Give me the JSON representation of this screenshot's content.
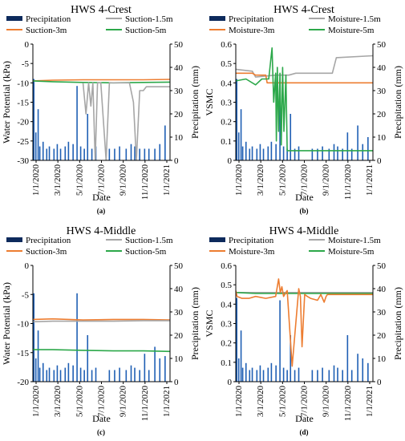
{
  "figure": {
    "panels": [
      "a",
      "b",
      "c",
      "d"
    ]
  },
  "chart_data": [
    {
      "id": "a",
      "type": "line",
      "title": "HWS 4-Crest",
      "caption": "(a)",
      "xlabel": "Date",
      "ylabel": "Water Potential (kPa)",
      "y2label": "Precipitation (mm)",
      "x_ticks": [
        "1/1/2020",
        "3/1/2020",
        "5/1/2020",
        "7/1/2020",
        "9/1/2020",
        "11/1/2020",
        "1/1/2021"
      ],
      "x_range": [
        "2020-01-01",
        "2021-02-20"
      ],
      "ylim": [
        -30,
        0
      ],
      "y_ticks": [
        -30,
        -25,
        -20,
        -15,
        -10,
        -5,
        0
      ],
      "y2lim": [
        0,
        50
      ],
      "y2_ticks": [
        0,
        10,
        20,
        30,
        40,
        50
      ],
      "legend": [
        "Precipitation",
        "Suction-1.5m",
        "Suction-3m",
        "Suction-5m"
      ],
      "colors": {
        "Precipitation": "#1f5fb4",
        "Suction-1.5m": "#a6a6a6",
        "Suction-3m": "#ed7d31",
        "Suction-5m": "#2ca84a"
      },
      "precipitation": {
        "name": "Precipitation",
        "axis": "right",
        "x": [
          "2020-01-04",
          "2020-01-10",
          "2020-01-17",
          "2020-01-22",
          "2020-02-01",
          "2020-02-12",
          "2020-02-20",
          "2020-03-05",
          "2020-03-15",
          "2020-03-25",
          "2020-04-08",
          "2020-04-18",
          "2020-05-02",
          "2020-05-14",
          "2020-05-25",
          "2020-06-05",
          "2020-06-15",
          "2020-06-28",
          "2020-07-10",
          "2020-08-20",
          "2020-09-05",
          "2020-09-20",
          "2020-10-10",
          "2020-10-25",
          "2020-11-05",
          "2020-11-20",
          "2020-12-05",
          "2020-12-18",
          "2021-01-05",
          "2021-01-20",
          "2021-02-05"
        ],
        "values": [
          35,
          12,
          22,
          6,
          8,
          5,
          6,
          5,
          7,
          5,
          6,
          8,
          7,
          32,
          6,
          5,
          20,
          5,
          6,
          5,
          5,
          6,
          5,
          7,
          6,
          5,
          5,
          5,
          5,
          7,
          15
        ]
      },
      "series": [
        {
          "name": "Suction-3m",
          "x": [
            "2020-01-01",
            "2020-03-01",
            "2020-06-01",
            "2020-09-01",
            "2020-12-01",
            "2021-02-20"
          ],
          "y": [
            -9.5,
            -9.3,
            -9.2,
            -9.2,
            -9.2,
            -9.1
          ]
        },
        {
          "name": "Suction-5m",
          "x": [
            "2020-01-01",
            "2020-03-01",
            "2020-06-01",
            "2020-09-01",
            "2020-12-01",
            "2021-02-20"
          ],
          "y": [
            -9.5,
            -9.7,
            -9.9,
            -10.0,
            -9.9,
            -9.8
          ]
        },
        {
          "name": "Suction-1.5m",
          "x": [
            "2020-06-01",
            "2020-06-10",
            "2020-06-18",
            "2020-06-25",
            "2020-07-01",
            "2020-07-08",
            "2020-07-15",
            "2020-07-25",
            "2020-08-10",
            "2020-08-20",
            "2020-10-20",
            "2020-11-01",
            "2020-11-10",
            "2020-11-20",
            "2020-12-01",
            "2020-12-10",
            "2021-01-01",
            "2021-02-20"
          ],
          "y": [
            -10,
            -18,
            -10,
            -16,
            -10,
            -30,
            -10,
            -10,
            -30,
            -10,
            -10,
            -15,
            -30,
            -12,
            -12,
            -11,
            -11,
            -11
          ]
        }
      ]
    },
    {
      "id": "b",
      "type": "line",
      "title": "HWS 4-Crest",
      "caption": "(b)",
      "xlabel": "Date",
      "ylabel": "VSMC",
      "y2label": "Precipitation (mm)",
      "x_ticks": [
        "1/1/2020",
        "3/1/2020",
        "5/1/2020",
        "7/1/2020",
        "9/1/2020",
        "11/1/2020",
        "1/1/2021"
      ],
      "x_range": [
        "2020-01-01",
        "2021-02-20"
      ],
      "ylim": [
        0,
        0.6
      ],
      "y_ticks": [
        0,
        0.1,
        0.2,
        0.3,
        0.4,
        0.5,
        0.6
      ],
      "y2lim": [
        0,
        50
      ],
      "y2_ticks": [
        0,
        10,
        20,
        30,
        40,
        50
      ],
      "legend": [
        "Precipitation",
        "Moisture-1.5m",
        "Moisture-3m",
        "Moisture-5m"
      ],
      "colors": {
        "Precipitation": "#1f5fb4",
        "Moisture-1.5m": "#a6a6a6",
        "Moisture-3m": "#ed7d31",
        "Moisture-5m": "#2ca84a"
      },
      "precipitation": {
        "name": "Precipitation",
        "axis": "right",
        "x": [
          "2020-01-04",
          "2020-01-10",
          "2020-01-17",
          "2020-01-22",
          "2020-02-01",
          "2020-02-12",
          "2020-02-20",
          "2020-03-05",
          "2020-03-15",
          "2020-03-25",
          "2020-04-08",
          "2020-04-18",
          "2020-05-02",
          "2020-05-14",
          "2020-05-25",
          "2020-06-05",
          "2020-06-15",
          "2020-06-28",
          "2020-07-10",
          "2020-08-20",
          "2020-09-05",
          "2020-09-20",
          "2020-10-10",
          "2020-10-25",
          "2020-11-05",
          "2020-11-20",
          "2020-12-05",
          "2020-12-18",
          "2021-01-05",
          "2021-01-20",
          "2021-02-05"
        ],
        "values": [
          35,
          12,
          22,
          6,
          8,
          5,
          6,
          5,
          7,
          5,
          6,
          8,
          7,
          32,
          6,
          5,
          20,
          5,
          6,
          5,
          5,
          6,
          5,
          7,
          6,
          5,
          12,
          5,
          15,
          7,
          10
        ]
      },
      "series": [
        {
          "name": "Moisture-1.5m",
          "x": [
            "2020-01-01",
            "2020-02-20",
            "2020-03-01",
            "2020-05-01",
            "2020-06-10",
            "2020-07-01",
            "2020-10-20",
            "2020-11-01",
            "2021-02-20"
          ],
          "y": [
            0.47,
            0.46,
            0.43,
            0.44,
            0.44,
            0.45,
            0.45,
            0.53,
            0.54
          ]
        },
        {
          "name": "Moisture-3m",
          "x": [
            "2020-01-01",
            "2020-02-20",
            "2020-03-01",
            "2020-04-01",
            "2020-04-05",
            "2020-06-01",
            "2021-02-20"
          ],
          "y": [
            0.45,
            0.45,
            0.44,
            0.44,
            0.4,
            0.4,
            0.4
          ]
        },
        {
          "name": "Moisture-5m",
          "x": [
            "2020-01-01",
            "2020-02-01",
            "2020-03-01",
            "2020-03-20",
            "2020-04-10",
            "2020-04-20",
            "2020-04-25",
            "2020-05-01",
            "2020-05-03",
            "2020-05-06",
            "2020-05-10",
            "2020-05-14",
            "2020-05-18",
            "2020-05-22",
            "2020-05-26",
            "2020-06-01",
            "2020-06-05",
            "2020-06-08",
            "2020-06-12",
            "2020-06-20",
            "2021-02-20"
          ],
          "y": [
            0.41,
            0.42,
            0.39,
            0.42,
            0.42,
            0.58,
            0.3,
            0.45,
            0.1,
            0.48,
            0.15,
            0.45,
            0.08,
            0.48,
            0.15,
            0.44,
            0.05,
            0.05,
            0.05,
            0.05,
            0.05
          ]
        }
      ]
    },
    {
      "id": "c",
      "type": "line",
      "title": "HWS 4-Middle",
      "caption": "(c)",
      "xlabel": "Date",
      "ylabel": "Water Potential (kPa)",
      "y2label": "Precipitation (mm)",
      "x_ticks": [
        "1/1/2020",
        "3/1/2020",
        "5/1/2020",
        "7/1/2020",
        "9/1/2020",
        "11/1/2020",
        "1/1/2021"
      ],
      "x_range": [
        "2020-01-01",
        "2021-02-20"
      ],
      "ylim": [
        -20,
        0
      ],
      "y_ticks": [
        -20,
        -15,
        -10,
        -5,
        0
      ],
      "y2lim": [
        0,
        50
      ],
      "y2_ticks": [
        0,
        10,
        20,
        30,
        40,
        50
      ],
      "legend": [
        "Precipitation",
        "Suction-1.5m",
        "Suction-3m",
        "Suction-5m"
      ],
      "colors": {
        "Precipitation": "#1f5fb4",
        "Suction-1.5m": "#a6a6a6",
        "Suction-3m": "#ed7d31",
        "Suction-5m": "#2ca84a"
      },
      "precipitation": {
        "name": "Precipitation",
        "axis": "right",
        "x": [
          "2020-01-04",
          "2020-01-10",
          "2020-01-17",
          "2020-01-22",
          "2020-02-01",
          "2020-02-12",
          "2020-02-20",
          "2020-03-05",
          "2020-03-15",
          "2020-03-25",
          "2020-04-08",
          "2020-04-18",
          "2020-05-02",
          "2020-05-14",
          "2020-05-25",
          "2020-06-05",
          "2020-06-15",
          "2020-06-28",
          "2020-07-10",
          "2020-08-20",
          "2020-09-05",
          "2020-09-20",
          "2020-10-10",
          "2020-10-25",
          "2020-11-05",
          "2020-11-20",
          "2020-12-05",
          "2020-12-18",
          "2021-01-05",
          "2021-01-20",
          "2021-02-05"
        ],
        "values": [
          38,
          10,
          22,
          6,
          8,
          5,
          6,
          5,
          7,
          5,
          6,
          8,
          7,
          38,
          6,
          5,
          20,
          5,
          6,
          5,
          5,
          6,
          5,
          7,
          6,
          5,
          12,
          5,
          15,
          10,
          11
        ]
      },
      "series": [
        {
          "name": "Suction-3m",
          "x": [
            "2020-01-01",
            "2020-03-01",
            "2020-06-01",
            "2020-09-01",
            "2020-12-01",
            "2021-02-20"
          ],
          "y": [
            -9.3,
            -9.2,
            -9.4,
            -9.3,
            -9.3,
            -9.4
          ]
        },
        {
          "name": "Suction-1.5m",
          "x": [
            "2020-01-01",
            "2020-03-01",
            "2020-06-01",
            "2020-09-01",
            "2020-12-01",
            "2021-02-20"
          ],
          "y": [
            -9.7,
            -9.6,
            -9.6,
            -9.6,
            -9.5,
            -9.5
          ]
        },
        {
          "name": "Suction-5m",
          "x": [
            "2020-01-01",
            "2020-03-01",
            "2020-06-01",
            "2020-09-01",
            "2020-12-01",
            "2021-02-20"
          ],
          "y": [
            -14.5,
            -14.5,
            -14.6,
            -14.7,
            -14.7,
            -14.8
          ]
        }
      ]
    },
    {
      "id": "d",
      "type": "line",
      "title": "HWS 4-Middle",
      "caption": "(d)",
      "xlabel": "Date",
      "ylabel": "VSMC",
      "y2label": "Precipitation (mm)",
      "x_ticks": [
        "1/1/2020",
        "3/1/2020",
        "5/1/2020",
        "7/1/2020",
        "9/1/2020",
        "11/1/2020",
        "1/1/2021"
      ],
      "x_range": [
        "2020-01-01",
        "2021-02-20"
      ],
      "ylim": [
        0,
        0.6
      ],
      "y_ticks": [
        0,
        0.1,
        0.2,
        0.3,
        0.4,
        0.5,
        0.6
      ],
      "y2lim": [
        0,
        50
      ],
      "y2_ticks": [
        0,
        10,
        20,
        30,
        40,
        50
      ],
      "legend": [
        "Precipitation",
        "Moisture-1.5m",
        "Moisture-3m",
        "Moisture-5m"
      ],
      "colors": {
        "Precipitation": "#1f5fb4",
        "Moisture-1.5m": "#a6a6a6",
        "Moisture-3m": "#ed7d31",
        "Moisture-5m": "#2ca84a"
      },
      "precipitation": {
        "name": "Precipitation",
        "axis": "right",
        "x": [
          "2020-01-04",
          "2020-01-10",
          "2020-01-17",
          "2020-01-22",
          "2020-02-01",
          "2020-02-12",
          "2020-02-20",
          "2020-03-05",
          "2020-03-15",
          "2020-03-25",
          "2020-04-08",
          "2020-04-18",
          "2020-05-02",
          "2020-05-14",
          "2020-05-25",
          "2020-06-05",
          "2020-06-15",
          "2020-06-28",
          "2020-07-10",
          "2020-08-20",
          "2020-09-05",
          "2020-09-20",
          "2020-10-10",
          "2020-10-25",
          "2020-11-05",
          "2020-11-20",
          "2020-12-05",
          "2020-12-18",
          "2021-01-05",
          "2021-01-20",
          "2021-02-05"
        ],
        "values": [
          36,
          10,
          22,
          6,
          8,
          5,
          6,
          5,
          7,
          5,
          6,
          8,
          7,
          35,
          6,
          5,
          20,
          5,
          6,
          5,
          5,
          6,
          5,
          7,
          6,
          5,
          20,
          5,
          12,
          10,
          8
        ]
      },
      "series": [
        {
          "name": "Moisture-1.5m",
          "x": [
            "2020-01-01",
            "2020-03-01",
            "2020-06-01",
            "2020-09-01",
            "2020-12-01",
            "2021-02-20"
          ],
          "y": [
            0.46,
            0.46,
            0.46,
            0.46,
            0.46,
            0.46
          ]
        },
        {
          "name": "Moisture-5m",
          "x": [
            "2020-01-01",
            "2020-03-01",
            "2020-06-01",
            "2020-09-01",
            "2020-12-01",
            "2021-02-20"
          ],
          "y": [
            0.46,
            0.455,
            0.455,
            0.455,
            0.455,
            0.455
          ]
        },
        {
          "name": "Moisture-3m",
          "x": [
            "2020-01-01",
            "2020-01-05",
            "2020-01-20",
            "2020-02-10",
            "2020-03-01",
            "2020-04-01",
            "2020-05-01",
            "2020-05-10",
            "2020-05-15",
            "2020-05-20",
            "2020-05-25",
            "2020-06-01",
            "2020-06-05",
            "2020-06-20",
            "2020-07-10",
            "2020-07-15",
            "2020-07-20",
            "2020-07-28",
            "2020-08-05",
            "2020-08-15",
            "2020-09-05",
            "2020-09-15",
            "2020-09-25",
            "2020-10-01",
            "2020-10-05",
            "2021-02-20"
          ],
          "y": [
            0.47,
            0.44,
            0.43,
            0.43,
            0.44,
            0.43,
            0.44,
            0.53,
            0.46,
            0.49,
            0.44,
            0.46,
            0.47,
            0.08,
            0.48,
            0.44,
            0.18,
            0.45,
            0.44,
            0.43,
            0.42,
            0.45,
            0.41,
            0.44,
            0.45,
            0.45
          ]
        }
      ]
    }
  ]
}
